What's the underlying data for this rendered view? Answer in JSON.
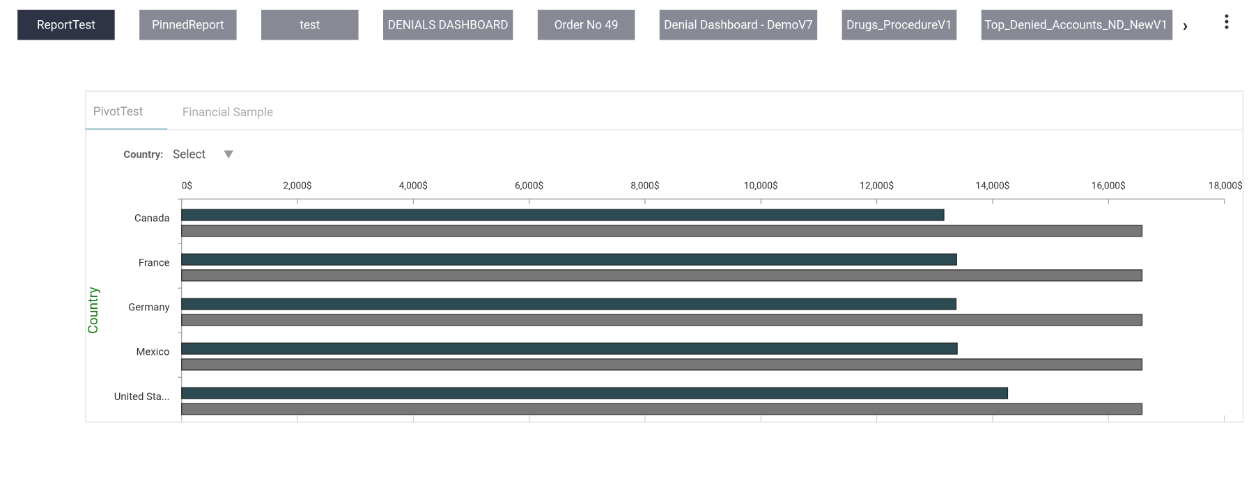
{
  "tabs": [
    "ReportTest",
    "PinnedReport",
    "test",
    "DENIALS DASHBOARD",
    "Order No 49",
    "Denial Dashboard - DemoV7",
    "Drugs_ProcedureV1",
    "Top_Denied_Accounts_ND_NewV1"
  ],
  "report_tabs": [
    "PivotTest",
    "Financial Sample"
  ],
  "filter": {
    "label": "Country:",
    "value": "Select"
  },
  "chart_data": {
    "type": "bar",
    "orientation": "horizontal",
    "y_label": "Country",
    "categories": [
      "Canada",
      "France",
      "Germany",
      "Mexico",
      "United Sta..."
    ],
    "series": [
      {
        "color": "#2c4a52",
        "values": [
          13160,
          13380,
          13370,
          13390,
          14260
        ]
      },
      {
        "color": "#777777",
        "values": [
          16580,
          16580,
          16580,
          16580,
          16580
        ]
      }
    ],
    "xlim": [
      0,
      18000
    ],
    "xticks": [
      {
        "value": 0,
        "label": "0$"
      },
      {
        "value": 2000,
        "label": "2,000$"
      },
      {
        "value": 4000,
        "label": "4,000$"
      },
      {
        "value": 6000,
        "label": "6,000$"
      },
      {
        "value": 8000,
        "label": "8,000$"
      },
      {
        "value": 10000,
        "label": "10,000$"
      },
      {
        "value": 12000,
        "label": "12,000$"
      },
      {
        "value": 14000,
        "label": "14,000$"
      },
      {
        "value": 16000,
        "label": "16,000$"
      },
      {
        "value": 18000,
        "label": "18,000$"
      }
    ],
    "grid": false
  }
}
